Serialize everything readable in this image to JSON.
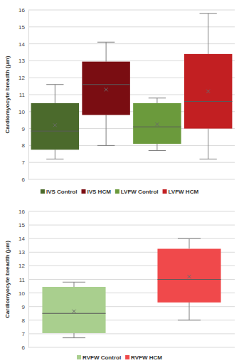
{
  "chart_data": [
    {
      "type": "box",
      "ylabel": "Cardiomyocyte breadth (μm)",
      "ylim": [
        6,
        16
      ],
      "yticks": [
        6,
        7,
        8,
        9,
        10,
        11,
        12,
        13,
        14,
        15,
        16
      ],
      "grid": true,
      "legend": "bottom",
      "marker": "x",
      "series": [
        {
          "name": "IVS Control",
          "color": "#4b6a2c",
          "min": 7.2,
          "q1": 7.75,
          "median": 8.85,
          "q3": 10.5,
          "max": 11.6,
          "mean": 9.2
        },
        {
          "name": "IVS HCM",
          "color": "#7a0d12",
          "min": 8.0,
          "q1": 9.8,
          "median": 11.6,
          "q3": 12.95,
          "max": 14.1,
          "mean": 11.3
        },
        {
          "name": "LVFW Control",
          "color": "#6b9a3c",
          "min": 7.7,
          "q1": 8.1,
          "median": 9.1,
          "q3": 10.5,
          "max": 10.8,
          "mean": 9.25
        },
        {
          "name": "LVFW HCM",
          "color": "#c21f22",
          "min": 7.2,
          "q1": 9.0,
          "median": 10.6,
          "q3": 13.4,
          "max": 15.8,
          "mean": 11.2
        }
      ]
    },
    {
      "type": "box",
      "ylabel": "Cardiomyocyte breadth (μm)",
      "ylim": [
        6,
        16
      ],
      "yticks": [
        6,
        7,
        8,
        9,
        10,
        11,
        12,
        13,
        14,
        15,
        16
      ],
      "grid": true,
      "legend": "bottom",
      "marker": "x",
      "series": [
        {
          "name": "RVFW Control",
          "color": "#a9cf8e",
          "min": 6.7,
          "q1": 7.05,
          "median": 8.5,
          "q3": 10.45,
          "max": 10.8,
          "mean": 8.65
        },
        {
          "name": "RVFW HCM",
          "color": "#f0494b",
          "min": 8.0,
          "q1": 9.3,
          "median": 11.0,
          "q3": 13.25,
          "max": 14.0,
          "mean": 11.2
        }
      ]
    }
  ]
}
